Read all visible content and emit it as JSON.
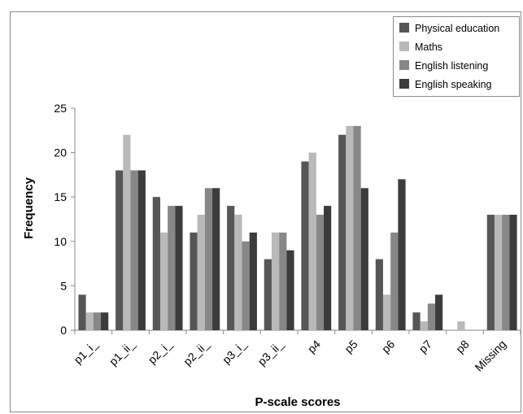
{
  "chart_data": {
    "type": "bar",
    "title": "",
    "xlabel": "P-scale scores",
    "ylabel": "Frequency",
    "ylim": [
      0,
      25
    ],
    "yticks": [
      0,
      5,
      10,
      15,
      20,
      25
    ],
    "grid": false,
    "legend_position": "top-right",
    "categories": [
      "p1_i_",
      "p1_ii_",
      "p2_i_",
      "p2_ii_",
      "p3_i_",
      "p3_ii_",
      "p4",
      "p5",
      "p6",
      "p7",
      "p8",
      "Missing"
    ],
    "series": [
      {
        "name": "Physical education",
        "color": "#565656",
        "values": [
          4,
          18,
          15,
          11,
          14,
          8,
          19,
          22,
          8,
          2,
          0,
          13
        ]
      },
      {
        "name": "Maths",
        "color": "#b9b9b9",
        "values": [
          2,
          22,
          11,
          13,
          13,
          11,
          20,
          23,
          4,
          1,
          1,
          13
        ]
      },
      {
        "name": "English listening",
        "color": "#878787",
        "values": [
          2,
          18,
          14,
          16,
          10,
          11,
          13,
          23,
          11,
          3,
          0,
          13
        ]
      },
      {
        "name": "English speaking",
        "color": "#3c3c3c",
        "values": [
          2,
          18,
          14,
          16,
          11,
          9,
          14,
          16,
          17,
          4,
          0,
          13
        ]
      }
    ]
  }
}
